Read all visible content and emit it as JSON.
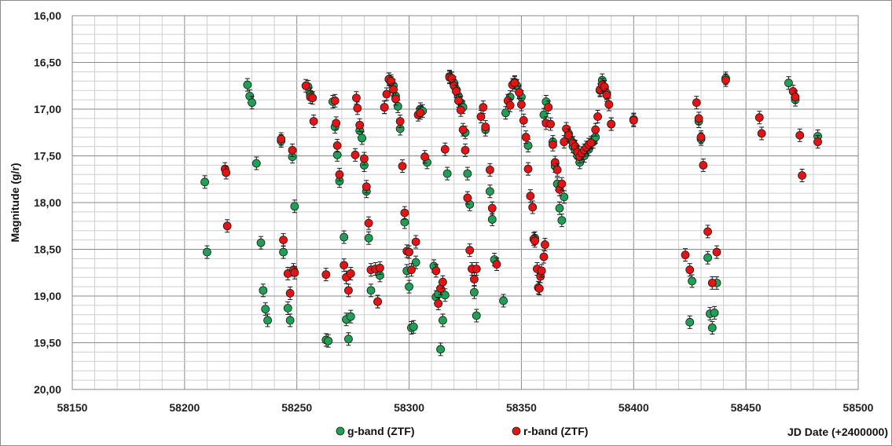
{
  "chart_data": {
    "type": "scatter",
    "ylabel": "Magnitude (g/r)",
    "xlabel": "JD Date (+2400000)",
    "xlim": [
      58150,
      58500
    ],
    "ylim": [
      16.0,
      20.0
    ],
    "y_inverted": true,
    "x_major_ticks": [
      58150,
      58200,
      58250,
      58300,
      58350,
      58400,
      58450,
      58500
    ],
    "x_tick_labels": [
      "58150",
      "58200",
      "58250",
      "58300",
      "58350",
      "58400",
      "58450",
      "58500"
    ],
    "y_tick_labels": [
      "16,00",
      "16,50",
      "17,00",
      "17,50",
      "18,00",
      "18,50",
      "19,00",
      "19,50",
      "20,00"
    ],
    "y_major_ticks": [
      16.0,
      16.5,
      17.0,
      17.5,
      18.0,
      18.5,
      19.0,
      19.5,
      20.0
    ],
    "grid": "on",
    "legend_position": "bottom",
    "series": [
      {
        "name": "g-band (ZTF)",
        "color": "#1fa055",
        "points": [
          [
            58209,
            17.78
          ],
          [
            58210,
            18.53
          ],
          [
            58228,
            16.74
          ],
          [
            58229,
            16.86
          ],
          [
            58230,
            16.93
          ],
          [
            58232,
            17.58
          ],
          [
            58234,
            18.43
          ],
          [
            58235,
            18.94
          ],
          [
            58236,
            19.14
          ],
          [
            58237,
            19.26
          ],
          [
            58243,
            17.34
          ],
          [
            58244,
            18.53
          ],
          [
            58246,
            19.13
          ],
          [
            58247,
            19.26
          ],
          [
            58248,
            17.51
          ],
          [
            58249,
            18.04
          ],
          [
            58255,
            16.76
          ],
          [
            58256,
            16.84
          ],
          [
            58263,
            19.47
          ],
          [
            58264,
            19.48
          ],
          [
            58266,
            16.92
          ],
          [
            58267,
            17.19
          ],
          [
            58268,
            17.49
          ],
          [
            58269,
            17.77
          ],
          [
            58271,
            18.37
          ],
          [
            58272,
            19.25
          ],
          [
            58273,
            19.46
          ],
          [
            58274,
            19.22
          ],
          [
            58278,
            17.23
          ],
          [
            58279,
            17.31
          ],
          [
            58280,
            17.6
          ],
          [
            58281,
            17.88
          ],
          [
            58282,
            18.38
          ],
          [
            58283,
            18.94
          ],
          [
            58286,
            19.06
          ],
          [
            58287,
            18.78
          ],
          [
            58289,
            16.98
          ],
          [
            58291,
            16.68
          ],
          [
            58292,
            16.72
          ],
          [
            58293,
            16.75
          ],
          [
            58294,
            16.86
          ],
          [
            58295,
            16.97
          ],
          [
            58296,
            17.21
          ],
          [
            58298,
            18.21
          ],
          [
            58299,
            18.73
          ],
          [
            58300,
            18.9
          ],
          [
            58301,
            19.34
          ],
          [
            58302,
            19.33
          ],
          [
            58303,
            18.64
          ],
          [
            58305,
            17.0
          ],
          [
            58306,
            17.02
          ],
          [
            58308,
            17.57
          ],
          [
            58311,
            18.68
          ],
          [
            58312,
            19.01
          ],
          [
            58313,
            18.98
          ],
          [
            58314,
            19.57
          ],
          [
            58315,
            19.26
          ],
          [
            58316,
            18.99
          ],
          [
            58317,
            17.69
          ],
          [
            58318,
            16.65
          ],
          [
            58319,
            16.67
          ],
          [
            58320,
            16.72
          ],
          [
            58321,
            16.79
          ],
          [
            58322,
            16.86
          ],
          [
            58323,
            16.93
          ],
          [
            58324,
            16.98
          ],
          [
            58325,
            17.25
          ],
          [
            58326,
            17.69
          ],
          [
            58327,
            18.02
          ],
          [
            58328,
            18.71
          ],
          [
            58329,
            18.96
          ],
          [
            58330,
            19.21
          ],
          [
            58334,
            17.22
          ],
          [
            58336,
            17.88
          ],
          [
            58337,
            18.18
          ],
          [
            58338,
            18.61
          ],
          [
            58342,
            19.05
          ],
          [
            58343,
            17.04
          ],
          [
            58345,
            16.87
          ],
          [
            58347,
            16.71
          ],
          [
            58348,
            16.75
          ],
          [
            58350,
            16.87
          ],
          [
            58353,
            17.39
          ],
          [
            58356,
            18.38
          ],
          [
            58360,
            17.06
          ],
          [
            58361,
            16.92
          ],
          [
            58364,
            17.35
          ],
          [
            58365,
            17.61
          ],
          [
            58366,
            17.8
          ],
          [
            58367,
            18.06
          ],
          [
            58368,
            18.19
          ],
          [
            58369,
            17.94
          ],
          [
            58371,
            17.26
          ],
          [
            58372,
            17.33
          ],
          [
            58373,
            17.4
          ],
          [
            58374,
            17.44
          ],
          [
            58375,
            17.5
          ],
          [
            58376,
            17.57
          ],
          [
            58378,
            17.5
          ],
          [
            58380,
            17.43
          ],
          [
            58382,
            17.35
          ],
          [
            58383,
            17.3
          ],
          [
            58385,
            16.8
          ],
          [
            58386,
            16.69
          ],
          [
            58388,
            16.83
          ],
          [
            58390,
            17.16
          ],
          [
            58400,
            17.11
          ],
          [
            58425,
            19.28
          ],
          [
            58426,
            18.84
          ],
          [
            58429,
            17.13
          ],
          [
            58430,
            17.32
          ],
          [
            58433,
            18.59
          ],
          [
            58434,
            19.19
          ],
          [
            58435,
            19.34
          ],
          [
            58436,
            19.18
          ],
          [
            58437,
            18.86
          ],
          [
            58441,
            16.67
          ],
          [
            58469,
            16.72
          ],
          [
            58472,
            16.9
          ],
          [
            58482,
            17.29
          ]
        ]
      },
      {
        "name": "r-band (ZTF)",
        "color": "#e51414",
        "points": [
          [
            58218,
            17.64
          ],
          [
            58218.5,
            17.68
          ],
          [
            58219,
            18.25
          ],
          [
            58243,
            17.32
          ],
          [
            58244,
            18.4
          ],
          [
            58246,
            18.76
          ],
          [
            58247,
            18.97
          ],
          [
            58248,
            17.44
          ],
          [
            58248.5,
            18.72
          ],
          [
            58249,
            18.75
          ],
          [
            58254,
            16.75
          ],
          [
            58256,
            16.87
          ],
          [
            58257,
            16.88
          ],
          [
            58257.5,
            17.13
          ],
          [
            58263,
            18.77
          ],
          [
            58267,
            16.91
          ],
          [
            58267.5,
            17.15
          ],
          [
            58268,
            17.39
          ],
          [
            58269,
            17.7
          ],
          [
            58271,
            18.67
          ],
          [
            58272,
            18.8
          ],
          [
            58273,
            18.94
          ],
          [
            58274,
            18.76
          ],
          [
            58276,
            17.49
          ],
          [
            58276.5,
            16.88
          ],
          [
            58277,
            16.99
          ],
          [
            58278,
            17.17
          ],
          [
            58280,
            17.53
          ],
          [
            58281,
            17.83
          ],
          [
            58282,
            18.22
          ],
          [
            58283,
            18.72
          ],
          [
            58285,
            18.71
          ],
          [
            58286,
            19.06
          ],
          [
            58287,
            18.7
          ],
          [
            58289,
            16.98
          ],
          [
            58290,
            16.84
          ],
          [
            58291,
            16.68
          ],
          [
            58292,
            16.7
          ],
          [
            58293,
            16.79
          ],
          [
            58294,
            16.89
          ],
          [
            58296,
            17.13
          ],
          [
            58297,
            17.61
          ],
          [
            58298,
            18.11
          ],
          [
            58299,
            18.52
          ],
          [
            58300,
            18.53
          ],
          [
            58301,
            18.72
          ],
          [
            58303,
            18.42
          ],
          [
            58304,
            17.06
          ],
          [
            58305,
            17.04
          ],
          [
            58307,
            17.51
          ],
          [
            58312,
            18.73
          ],
          [
            58313,
            19.08
          ],
          [
            58314,
            18.92
          ],
          [
            58315,
            18.85
          ],
          [
            58316,
            17.43
          ],
          [
            58318,
            16.66
          ],
          [
            58319,
            16.67
          ],
          [
            58320,
            16.75
          ],
          [
            58321,
            16.81
          ],
          [
            58322,
            16.91
          ],
          [
            58323,
            17.01
          ],
          [
            58324,
            17.22
          ],
          [
            58325,
            17.44
          ],
          [
            58326,
            17.95
          ],
          [
            58327,
            18.51
          ],
          [
            58328,
            18.71
          ],
          [
            58329,
            18.82
          ],
          [
            58330,
            18.71
          ],
          [
            58332,
            17.08
          ],
          [
            58333,
            16.98
          ],
          [
            58334,
            17.19
          ],
          [
            58336,
            17.65
          ],
          [
            58337,
            18.06
          ],
          [
            58339,
            18.66
          ],
          [
            58344,
            16.91
          ],
          [
            58345,
            16.96
          ],
          [
            58346,
            16.74
          ],
          [
            58347,
            16.72
          ],
          [
            58349,
            16.82
          ],
          [
            58350,
            16.95
          ],
          [
            58351,
            17.12
          ],
          [
            58352,
            17.3
          ],
          [
            58353,
            17.64
          ],
          [
            58354,
            17.93
          ],
          [
            58355,
            18.05
          ],
          [
            58355.5,
            18.39
          ],
          [
            58356,
            18.41
          ],
          [
            58357,
            18.71
          ],
          [
            58357.5,
            18.91
          ],
          [
            58358,
            18.92
          ],
          [
            58358.5,
            18.79
          ],
          [
            58359,
            18.73
          ],
          [
            58360,
            18.58
          ],
          [
            58360.5,
            18.45
          ],
          [
            58361,
            17.15
          ],
          [
            58362,
            16.98
          ],
          [
            58363,
            17.16
          ],
          [
            58364,
            17.38
          ],
          [
            58365,
            17.57
          ],
          [
            58366,
            17.65
          ],
          [
            58367,
            17.86
          ],
          [
            58368,
            17.8
          ],
          [
            58369,
            17.35
          ],
          [
            58370,
            17.21
          ],
          [
            58371,
            17.28
          ],
          [
            58373,
            17.36
          ],
          [
            58374,
            17.4
          ],
          [
            58375,
            17.46
          ],
          [
            58376,
            17.51
          ],
          [
            58377,
            17.47
          ],
          [
            58378,
            17.44
          ],
          [
            58379,
            17.41
          ],
          [
            58380,
            17.38
          ],
          [
            58381,
            17.36
          ],
          [
            58383,
            17.22
          ],
          [
            58384,
            17.08
          ],
          [
            58385,
            16.79
          ],
          [
            58386,
            16.74
          ],
          [
            58387,
            16.76
          ],
          [
            58388,
            16.85
          ],
          [
            58389,
            16.95
          ],
          [
            58390,
            17.16
          ],
          [
            58400,
            17.12
          ],
          [
            58423,
            18.56
          ],
          [
            58425,
            18.72
          ],
          [
            58428,
            16.93
          ],
          [
            58429,
            17.1
          ],
          [
            58430,
            17.3
          ],
          [
            58431,
            17.6
          ],
          [
            58433,
            18.31
          ],
          [
            58435,
            18.86
          ],
          [
            58437,
            18.53
          ],
          [
            58441,
            16.69
          ],
          [
            58456,
            17.09
          ],
          [
            58457,
            17.26
          ],
          [
            58471,
            16.81
          ],
          [
            58472,
            16.87
          ],
          [
            58474,
            17.28
          ],
          [
            58475,
            17.71
          ],
          [
            58482,
            17.35
          ]
        ]
      }
    ]
  }
}
